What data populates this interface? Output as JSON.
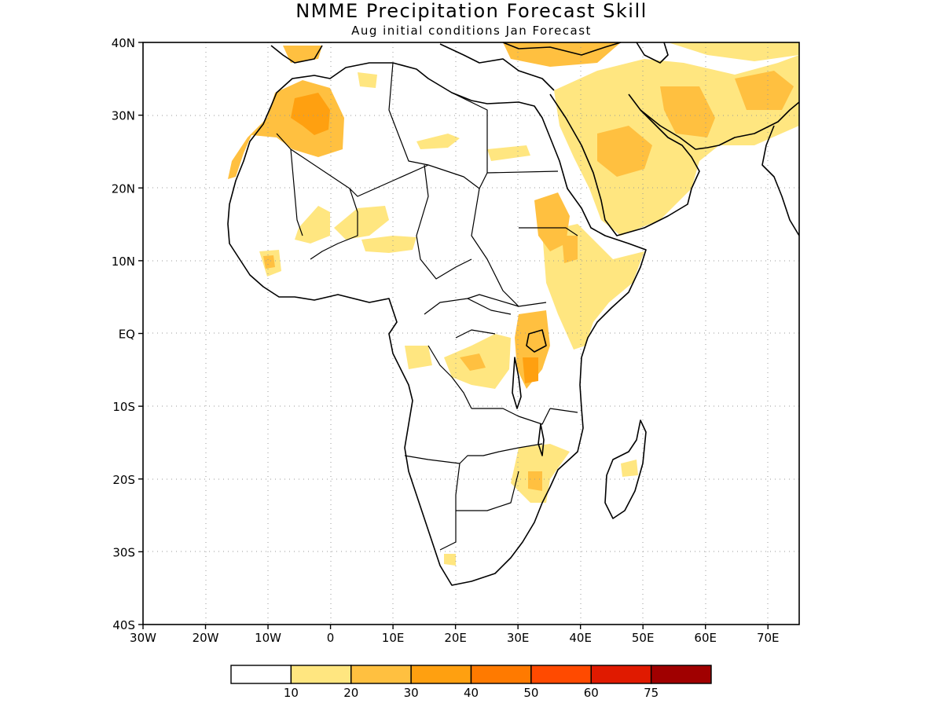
{
  "title": "NMME Precipitation Forecast Skill",
  "subtitle": "Aug initial conditions  Jan Forecast",
  "map": {
    "lon_range": [
      -30,
      75
    ],
    "lat_range": [
      -40,
      40
    ],
    "y_ticks": [
      "40N",
      "30N",
      "20N",
      "10N",
      "EQ",
      "10S",
      "20S",
      "30S",
      "40S"
    ],
    "x_ticks": [
      "30W",
      "20W",
      "10W",
      "0",
      "10E",
      "20E",
      "30E",
      "40E",
      "50E",
      "60E",
      "70E"
    ]
  },
  "colorbar": {
    "colors": [
      "#ffffff",
      "#ffe680",
      "#ffc040",
      "#ffa010",
      "#ff7a00",
      "#ff4a00",
      "#e01a00",
      "#a00000"
    ],
    "labels": [
      "10",
      "20",
      "30",
      "40",
      "50",
      "60",
      "75"
    ]
  },
  "skill_colors": {
    "low": "#ffe680",
    "mid": "#ffc040",
    "high": "#ffa010"
  }
}
